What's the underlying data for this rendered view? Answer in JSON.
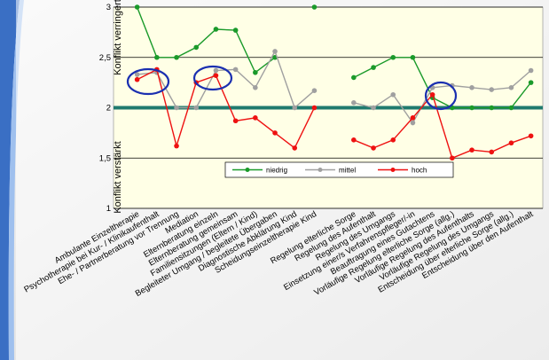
{
  "chart_data": {
    "type": "line",
    "annotations": [
      "Konflikt verringert",
      "Konflikt verstärkt"
    ],
    "categories": [
      "Ambulante Einzeltherapie",
      "Psychotherapie bei Kur- / Klinikaufenthalt",
      "Ehe- / Partnerberatung vor Trennung",
      "Mediation",
      "Elternberatung einzeln",
      "Elternberatung gemeinsam",
      "Familiensitzungen (Eltern / Kind)",
      "Begleiteter Umgang / begleitete Übergaben",
      "Diagnostische Abklärung Kind",
      "Scheidungseinzeltherapie Kind",
      null,
      "Regelung elterliche Sorge",
      "Regelung des Aufenthalt",
      "Regelung des Umgangs",
      "Einsetzung einer/s Verfahrenspfleger/-in",
      "Beauftragung eines Gutachtens",
      "Vorläufige Regelung elterliche Sorge (allg.)",
      "Vorläufige Regelung des Aufenthalts",
      "Vorläufige Regelung des Umgangs",
      "Entscheidung über elterliche Sorge (allg.)",
      "Entscheidung über den Aufenthalt"
    ],
    "series": [
      {
        "name": "niedrig",
        "color": "#1a9a2a",
        "values": [
          3,
          2.5,
          2.5,
          2.6,
          2.78,
          2.77,
          2.35,
          2.5,
          null,
          3,
          null,
          2.3,
          2.4,
          2.5,
          2.5,
          2.1,
          2.0,
          2.0,
          2.0,
          2.0,
          2.25
        ]
      },
      {
        "name": "mittel",
        "color": "#a0a0a0",
        "values": [
          2.33,
          2.35,
          2.0,
          2.0,
          2.37,
          2.38,
          2.2,
          2.56,
          2.0,
          2.17,
          null,
          2.05,
          2.0,
          2.13,
          1.85,
          2.2,
          2.22,
          2.2,
          2.18,
          2.2,
          2.37
        ]
      },
      {
        "name": "hoch",
        "color": "#ee1111",
        "values": [
          2.28,
          2.38,
          1.62,
          2.25,
          2.32,
          1.87,
          1.9,
          1.75,
          1.6,
          2.0,
          null,
          1.68,
          1.6,
          1.68,
          1.9,
          2.13,
          1.5,
          1.58,
          1.56,
          1.65,
          1.72
        ]
      }
    ],
    "ylim": [
      1,
      3
    ],
    "yticks": [
      1,
      {
        "value": 1.5,
        "label": "1,5"
      },
      2,
      {
        "value": 2.5,
        "label": "2,5"
      },
      3
    ],
    "reference_line": 2,
    "grid": true,
    "legend": "center"
  }
}
